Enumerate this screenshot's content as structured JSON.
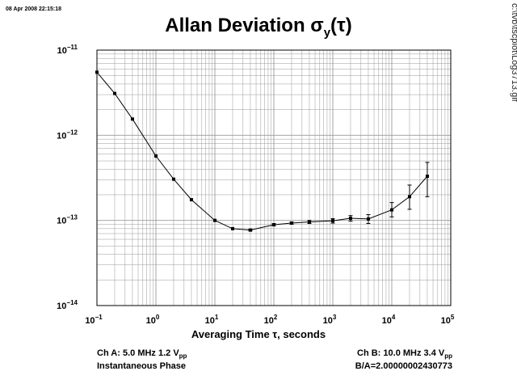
{
  "timestamp": "08 Apr 2008 22:15:18",
  "side_path": "c:\\tvb\\tscplot\\Log3713.gif",
  "chart_data": {
    "type": "scatter",
    "title": "Allan Deviation σy(τ)",
    "xlabel": "Averaging Time τ, seconds",
    "ylabel": "",
    "xscale": "log",
    "yscale": "log",
    "xlim": [
      0.1,
      100000
    ],
    "ylim": [
      1e-14,
      1e-11
    ],
    "grid": true,
    "x_ticks": [
      {
        "value": 0.1,
        "base": "10",
        "exp": "−1"
      },
      {
        "value": 1,
        "base": "10",
        "exp": "0"
      },
      {
        "value": 10,
        "base": "10",
        "exp": "1"
      },
      {
        "value": 100,
        "base": "10",
        "exp": "2"
      },
      {
        "value": 1000,
        "base": "10",
        "exp": "3"
      },
      {
        "value": 10000,
        "base": "10",
        "exp": "4"
      },
      {
        "value": 100000,
        "base": "10",
        "exp": "5"
      }
    ],
    "y_ticks": [
      {
        "value": 1e-11,
        "base": "10",
        "exp": "−11"
      },
      {
        "value": 1e-12,
        "base": "10",
        "exp": "−12"
      },
      {
        "value": 1e-13,
        "base": "10",
        "exp": "−13"
      },
      {
        "value": 1e-14,
        "base": "10",
        "exp": "−14"
      }
    ],
    "series": [
      {
        "x": [
          0.1,
          0.2,
          0.4,
          1,
          2,
          4,
          10,
          20,
          40,
          100,
          200,
          400,
          1000,
          2000,
          4000,
          10000,
          20000,
          40000
        ],
        "y": [
          5.5e-12,
          3.1e-12,
          1.55e-12,
          5.7e-13,
          3.05e-13,
          1.75e-13,
          1e-13,
          8e-14,
          7.7e-14,
          8.9e-14,
          9.3e-14,
          9.6e-14,
          9.9e-14,
          1.06e-13,
          1.04e-13,
          1.33e-13,
          1.9e-13,
          3.3e-13
        ],
        "err_low": [
          5.4e-12,
          3.05e-12,
          1.52e-12,
          5.6e-13,
          3e-13,
          1.72e-13,
          9.8e-14,
          7.85e-14,
          7.5e-14,
          8.6e-14,
          9e-14,
          9.2e-14,
          9.3e-14,
          9.8e-14,
          9.2e-14,
          1.1e-13,
          1.35e-13,
          1.9e-13
        ],
        "err_high": [
          5.6e-12,
          3.15e-12,
          1.58e-12,
          5.8e-13,
          3.1e-13,
          1.78e-13,
          1.02e-13,
          8.15e-14,
          7.9e-14,
          9.2e-14,
          9.6e-14,
          1e-13,
          1.05e-13,
          1.14e-13,
          1.17e-13,
          1.62e-13,
          2.6e-13,
          4.8e-13
        ]
      }
    ]
  },
  "info": {
    "ch_a_prefix": "Ch A: 5.0 MHz 1.2 V",
    "ch_a_sub": "pp",
    "ch_a_mode": "Instantaneous Phase",
    "ch_b_prefix": "Ch B: 10.0 MHz 3.4 V",
    "ch_b_sub": "pp",
    "ratio": "B/A=2.00000002430773"
  }
}
